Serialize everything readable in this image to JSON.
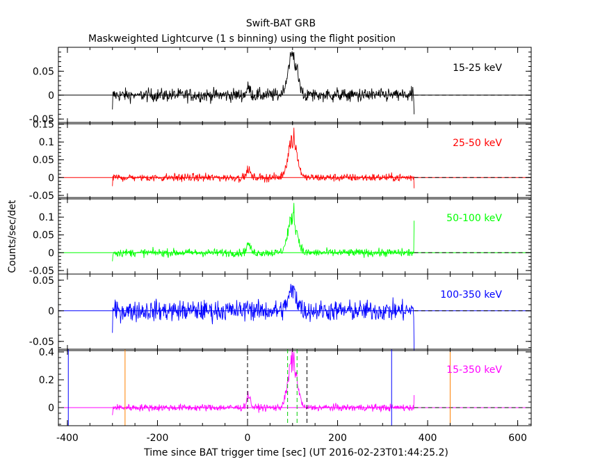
{
  "header": {
    "title": "Swift-BAT GRB",
    "subtitle": "Maskweighted Lightcurve (1 s binning) using the flight position"
  },
  "axes": {
    "xlabel": "Time since BAT trigger time [sec] (UT 2016-02-23T01:44:25.2)",
    "ylabel": "Counts/sec/det"
  },
  "chart_data": [
    {
      "type": "line",
      "band_label": "15-25 keV",
      "color": "#000000",
      "xlim": [
        -420,
        630
      ],
      "ylim": [
        -0.06,
        0.1
      ],
      "yticks": [
        -0.05,
        0,
        0.05
      ],
      "ytick_labels": [
        "-0.05",
        "0",
        "0.05"
      ],
      "noise": 0.01,
      "bump": 0.015,
      "peak": 0.065,
      "spike": 0.09,
      "end_spike": -0.04
    },
    {
      "type": "line",
      "band_label": "25-50 keV",
      "color": "#ff0000",
      "xlim": [
        -420,
        630
      ],
      "ylim": [
        -0.06,
        0.155
      ],
      "yticks": [
        -0.05,
        0,
        0.05,
        0.1,
        0.15
      ],
      "ytick_labels": [
        "-0.05",
        "0",
        "0.05",
        "0.1",
        "0.15"
      ],
      "noise": 0.008,
      "bump": 0.022,
      "peak": 0.08,
      "spike": 0.14,
      "end_spike": -0.03
    },
    {
      "type": "line",
      "band_label": "50-100 keV",
      "color": "#00ff00",
      "xlim": [
        -420,
        630
      ],
      "ylim": [
        -0.06,
        0.155
      ],
      "yticks": [
        -0.05,
        0,
        0.05,
        0.1
      ],
      "ytick_labels": [
        "-0.05",
        "0",
        "0.05",
        "0.1"
      ],
      "noise": 0.008,
      "bump": 0.025,
      "peak": 0.075,
      "spike": 0.14,
      "end_spike": 0.09
    },
    {
      "type": "line",
      "band_label": "100-350 keV",
      "color": "#0000ff",
      "xlim": [
        -420,
        630
      ],
      "ylim": [
        -0.065,
        0.06
      ],
      "yticks": [
        -0.05,
        0,
        0.05
      ],
      "ytick_labels": [
        "-0.05",
        "0",
        "0.05"
      ],
      "noise": 0.012,
      "bump": 0.008,
      "peak": 0.025,
      "spike": 0.04,
      "end_spike": -0.065
    },
    {
      "type": "line",
      "band_label": "15-350 keV",
      "color": "#ff00ff",
      "xlim": [
        -420,
        630
      ],
      "ylim": [
        -0.13,
        0.42
      ],
      "yticks": [
        0,
        0.2,
        0.4
      ],
      "ytick_labels": [
        "0",
        "0.2",
        "0.4"
      ],
      "noise": 0.018,
      "bump": 0.09,
      "peak": 0.25,
      "spike": 0.4,
      "end_spike": 0.09,
      "markers": [
        {
          "x": -398,
          "color": "#0000ff",
          "style": "solid"
        },
        {
          "x": 320,
          "color": "#0000ff",
          "style": "solid"
        },
        {
          "x": -272,
          "color": "#ff8000",
          "style": "solid"
        },
        {
          "x": 450,
          "color": "#ff8000",
          "style": "solid"
        },
        {
          "x": 0,
          "color": "#000000",
          "style": "dashed"
        },
        {
          "x": 132,
          "color": "#000000",
          "style": "dashed"
        },
        {
          "x": 89,
          "color": "#00cc00",
          "style": "dashed"
        },
        {
          "x": 110,
          "color": "#00cc00",
          "style": "dashed"
        }
      ]
    }
  ],
  "xticks": [
    -400,
    -200,
    0,
    200,
    400,
    600
  ],
  "xtick_labels": [
    "-400",
    "-200",
    "0",
    "200",
    "400",
    "600"
  ],
  "data_range": [
    -300,
    370
  ]
}
